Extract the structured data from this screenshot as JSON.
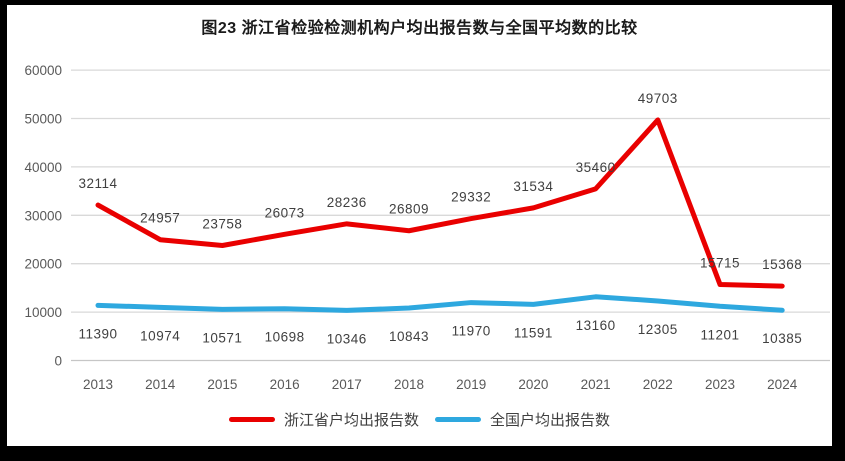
{
  "title": "图23  浙江省检验检测机构户均出报告数与全国平均数的比较",
  "legend": {
    "items": [
      {
        "label": "浙江省户均出报告数",
        "color": "#e90000"
      },
      {
        "label": "全国户均出报告数",
        "color": "#2ea8df"
      }
    ]
  },
  "colors": {
    "zhejiang_line": "#e90000",
    "national_line": "#2ea8df",
    "gridline": "#d9d9d9",
    "axis_line": "#c6c6c6",
    "axis_text": "#595959",
    "data_label_text": "#404040",
    "frame_border": "#000000",
    "plot_background": "#ffffff"
  },
  "chart_data": {
    "type": "line",
    "title": "图23  浙江省检验检测机构户均出报告数与全国平均数的比较",
    "categories": [
      "2013",
      "2014",
      "2015",
      "2016",
      "2017",
      "2018",
      "2019",
      "2020",
      "2021",
      "2022",
      "2023",
      "2024"
    ],
    "series": [
      {
        "name": "浙江省户均出报告数",
        "color": "#e90000",
        "values": [
          32114,
          24957,
          23758,
          26073,
          28236,
          26809,
          29332,
          31534,
          35460,
          49703,
          15715,
          15368
        ]
      },
      {
        "name": "全国户均出报告数",
        "color": "#2ea8df",
        "values": [
          11390,
          10974,
          10571,
          10698,
          10346,
          10843,
          11970,
          11591,
          13160,
          12305,
          11201,
          10385
        ]
      }
    ],
    "xlabel": "",
    "ylabel": "",
    "ylim": [
      0,
      60000
    ],
    "yticks": [
      0,
      10000,
      20000,
      30000,
      40000,
      50000,
      60000
    ],
    "grid": true,
    "data_labels": true,
    "legend_position": "bottom"
  }
}
